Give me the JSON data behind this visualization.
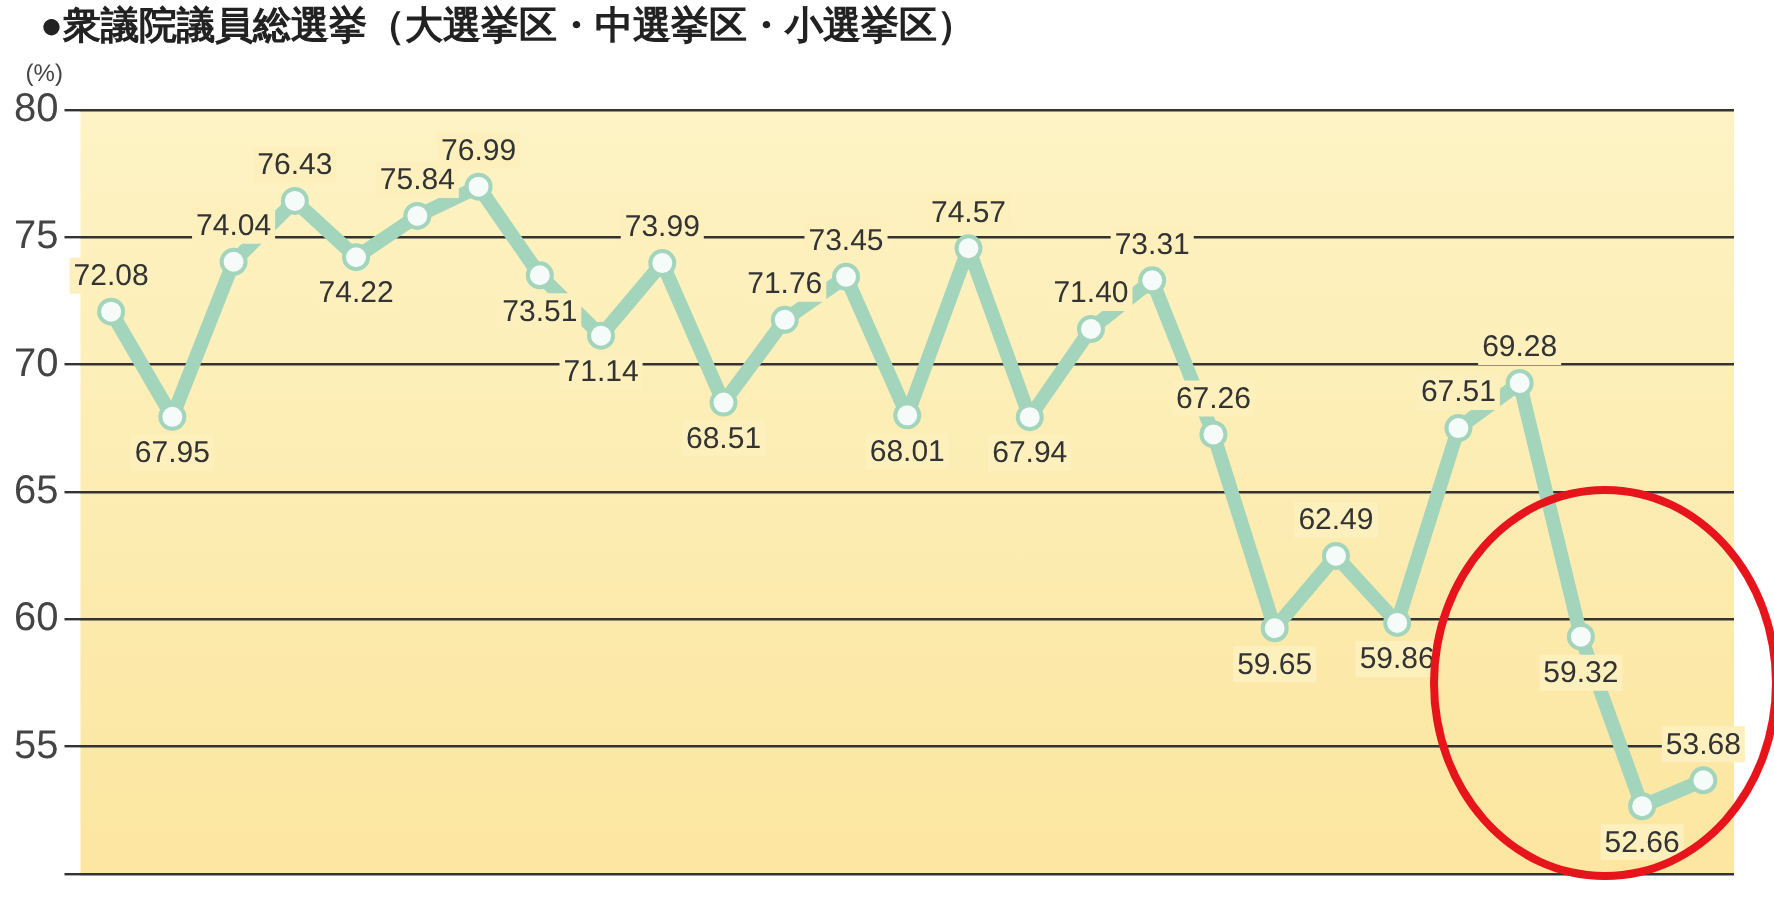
{
  "chart_data": {
    "type": "line",
    "title": "●衆議院議員総選挙（大選挙区・中選挙区・小選挙区）",
    "ylabel": "(%)",
    "categories": [
      null,
      null,
      null,
      null,
      null,
      null,
      null,
      null,
      null,
      null,
      null,
      null,
      null,
      null,
      null,
      null,
      null,
      null,
      null,
      null,
      null,
      null,
      null,
      null,
      null,
      null,
      null
    ],
    "series": [
      {
        "color": "#a3d4bc",
        "values": [
          72.08,
          67.95,
          74.04,
          76.43,
          74.22,
          75.84,
          76.99,
          73.51,
          71.14,
          73.99,
          68.51,
          71.76,
          73.45,
          68.01,
          74.57,
          67.94,
          71.4,
          73.31,
          67.26,
          59.65,
          62.49,
          59.86,
          67.51,
          69.28,
          59.32,
          52.66,
          53.68
        ]
      }
    ],
    "ylim": [
      50,
      80
    ],
    "yticks": [
      {
        "value": 50,
        "label": null
      },
      55,
      60,
      65,
      70,
      75,
      80
    ],
    "grid": "y",
    "legend": false,
    "marker": "circle",
    "line_style": "solid",
    "tick_labels": "y",
    "value_labels": [
      "72.08",
      "67.95",
      "74.04",
      "76.43",
      "74.22",
      "75.84",
      "76.99",
      "73.51",
      "71.14",
      "73.99",
      "68.51",
      "71.76",
      "73.45",
      "68.01",
      "74.57",
      "67.94",
      "71.40",
      "73.31",
      "67.26",
      "59.65",
      "62.49",
      "59.86",
      "67.51",
      "69.28",
      "59.32",
      "52.66",
      "53.68"
    ]
  }
}
